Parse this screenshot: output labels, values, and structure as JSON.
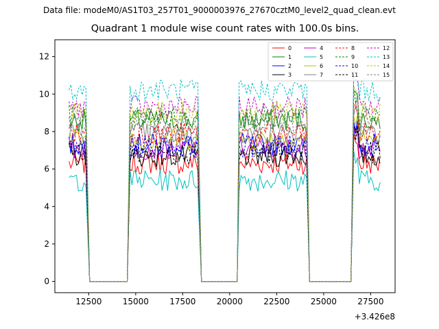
{
  "figure": {
    "suptitle": "Data file: modeM0/AS1T03_257T01_9000003976_27670cztM0_level2_quad_clean.evt",
    "title": "Quadrant 1 module wise count rates with 100.0s bins."
  },
  "chart_data": {
    "type": "line",
    "title": "Quadrant 1 module wise count rates with 100.0s bins.",
    "xlabel": "",
    "ylabel": "",
    "x_offset_label": "+3.426e8",
    "xlim": [
      10700,
      28800
    ],
    "ylim": [
      -0.6,
      12.9
    ],
    "x_ticks": [
      12500,
      15000,
      17500,
      20000,
      22500,
      25000,
      27500
    ],
    "x_tick_labels": [
      "12500",
      "15000",
      "17500",
      "20000",
      "22500",
      "25000",
      "27500"
    ],
    "y_ticks": [
      0,
      2,
      4,
      6,
      8,
      10,
      12
    ],
    "y_tick_labels": [
      "0",
      "2",
      "4",
      "6",
      "8",
      "10",
      "12"
    ],
    "grid": false,
    "legend": {
      "position": "top-right",
      "columns": 4
    },
    "segments": [
      {
        "x_start": 11450,
        "x_end": 12400
      },
      {
        "x_start": 14700,
        "x_end": 18300
      },
      {
        "x_start": 20500,
        "x_end": 24100
      },
      {
        "x_start": 26600,
        "x_end": 28050
      }
    ],
    "gaps": [
      {
        "x_start": 12550,
        "x_end": 14550
      },
      {
        "x_start": 18500,
        "x_end": 20400
      },
      {
        "x_start": 24250,
        "x_end": 26450
      }
    ],
    "series": [
      {
        "name": "0",
        "color": "#ff0000",
        "dash": "solid",
        "level": 6.3
      },
      {
        "name": "1",
        "color": "#008000",
        "dash": "solid",
        "level": 8.6
      },
      {
        "name": "2",
        "color": "#0000ff",
        "dash": "solid",
        "level": 7.3
      },
      {
        "name": "3",
        "color": "#000000",
        "dash": "solid",
        "level": 6.7
      },
      {
        "name": "4",
        "color": "#c000c0",
        "dash": "solid",
        "level": 7.1
      },
      {
        "name": "5",
        "color": "#00bfbf",
        "dash": "solid",
        "level": 5.4
      },
      {
        "name": "6",
        "color": "#bfbf00",
        "dash": "solid",
        "level": 7.6
      },
      {
        "name": "7",
        "color": "#808080",
        "dash": "solid",
        "level": 7.9
      },
      {
        "name": "8",
        "color": "#ff0000",
        "dash": "dashed",
        "level": 7.9
      },
      {
        "name": "9",
        "color": "#008000",
        "dash": "dashed",
        "level": 8.8
      },
      {
        "name": "10",
        "color": "#0000ff",
        "dash": "dashed",
        "level": 7.2
      },
      {
        "name": "11",
        "color": "#000000",
        "dash": "dashed",
        "level": 6.9
      },
      {
        "name": "12",
        "color": "#c000c0",
        "dash": "dashed",
        "level": 9.3
      },
      {
        "name": "13",
        "color": "#00bfbf",
        "dash": "dashed",
        "level": 10.2
      },
      {
        "name": "14",
        "color": "#bfbf00",
        "dash": "dashed",
        "level": 9.0
      },
      {
        "name": "15",
        "color": "#808080",
        "dash": "dashed",
        "level": 8.4
      }
    ]
  }
}
